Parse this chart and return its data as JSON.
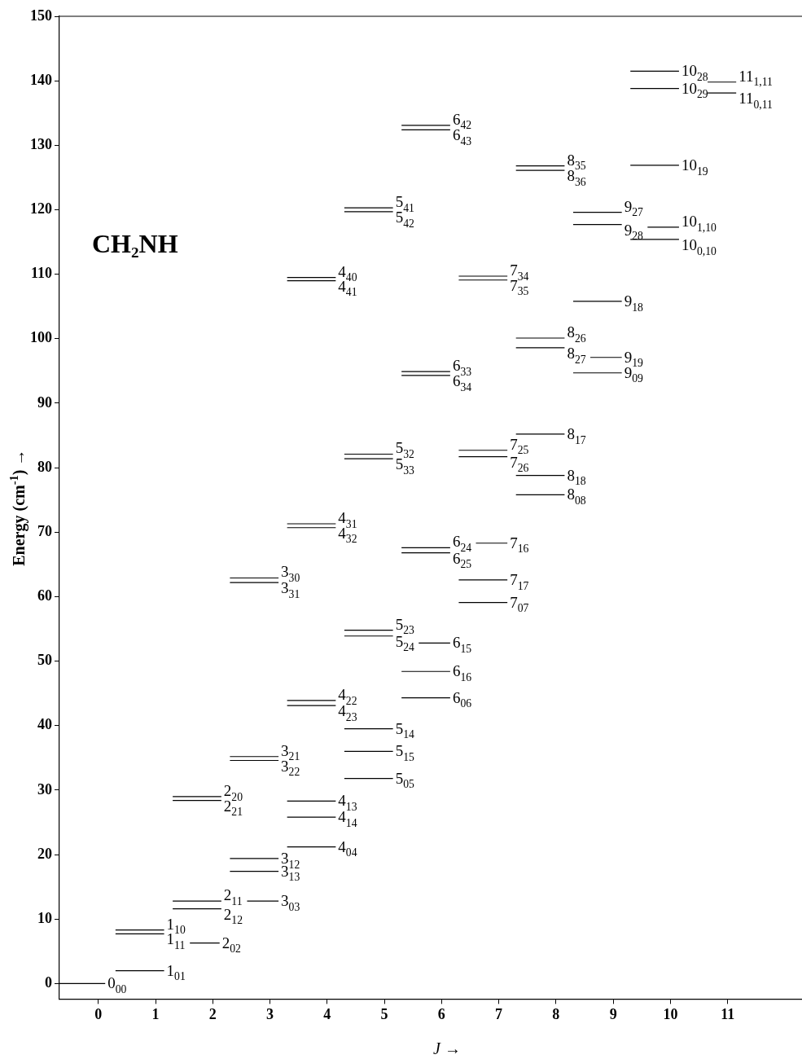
{
  "chart_data": {
    "type": "line",
    "xlabel": "J →",
    "ylabel": "Energy (cm$^{-1}$) →",
    "annotations": [
      "CH₂NH"
    ],
    "xlim": [
      -0.68,
      12.3
    ],
    "xticks": [
      0,
      1,
      2,
      3,
      4,
      5,
      6,
      7,
      8,
      9,
      10,
      11
    ],
    "ylim": [
      -2.4,
      150
    ],
    "yticks": [
      0,
      10,
      20,
      30,
      40,
      50,
      60,
      70,
      80,
      90,
      100,
      110,
      120,
      130,
      140,
      150
    ],
    "legend": false,
    "marker": "none",
    "series": [
      {
        "name": "0$_{00}$",
        "color": "#000000",
        "x": [
          -0.68,
          0.12
        ],
        "values": [
          0,
          0
        ]
      },
      {
        "name": "1$_{01}$",
        "color": "#000000",
        "x": [
          0.3,
          1.15
        ],
        "values": [
          2.0,
          2.0
        ]
      },
      {
        "name": "1$_{10}$",
        "color": "#000000",
        "x": [
          0.3,
          1.15
        ],
        "values": [
          8.3,
          8.3
        ]
      },
      {
        "name": "1$_{11}$",
        "color": "#000000",
        "x": [
          0.3,
          1.15
        ],
        "values": [
          7.7,
          7.7
        ]
      },
      {
        "name": "2$_{02}$",
        "color": "#000000",
        "x": [
          1.6,
          2.12
        ],
        "values": [
          6.3,
          6.3
        ]
      },
      {
        "name": "2$_{11}$",
        "color": "#000000",
        "x": [
          1.3,
          2.15
        ],
        "values": [
          12.8,
          12.8
        ]
      },
      {
        "name": "2$_{12}$",
        "color": "#000000",
        "x": [
          1.3,
          2.15
        ],
        "values": [
          11.6,
          11.6
        ]
      },
      {
        "name": "2$_{20}$",
        "color": "#000000",
        "x": [
          1.3,
          2.15
        ],
        "values": [
          29.0,
          29.0
        ]
      },
      {
        "name": "2$_{21}$",
        "color": "#000000",
        "x": [
          1.3,
          2.15
        ],
        "values": [
          28.4,
          28.4
        ]
      },
      {
        "name": "3$_{03}$",
        "color": "#000000",
        "x": [
          2.6,
          3.15
        ],
        "values": [
          12.8,
          12.8
        ]
      },
      {
        "name": "3$_{13}$",
        "color": "#000000",
        "x": [
          2.3,
          3.15
        ],
        "values": [
          17.4,
          17.4
        ]
      },
      {
        "name": "3$_{12}$",
        "color": "#000000",
        "x": [
          2.3,
          3.15
        ],
        "values": [
          19.4,
          19.4
        ]
      },
      {
        "name": "3$_{21}$",
        "color": "#000000",
        "x": [
          2.3,
          3.15
        ],
        "values": [
          35.2,
          35.2
        ]
      },
      {
        "name": "3$_{22}$",
        "color": "#000000",
        "x": [
          2.3,
          3.15
        ],
        "values": [
          34.6,
          34.6
        ]
      },
      {
        "name": "3$_{30}$",
        "color": "#000000",
        "x": [
          2.3,
          3.15
        ],
        "values": [
          62.9,
          62.9
        ]
      },
      {
        "name": "3$_{31}$",
        "color": "#000000",
        "x": [
          2.3,
          3.15
        ],
        "values": [
          62.2,
          62.2
        ]
      },
      {
        "name": "4$_{04}$",
        "color": "#000000",
        "x": [
          3.3,
          4.15
        ],
        "values": [
          21.2,
          21.2
        ]
      },
      {
        "name": "4$_{14}$",
        "color": "#000000",
        "x": [
          3.3,
          4.15
        ],
        "values": [
          25.8,
          25.8
        ]
      },
      {
        "name": "4$_{13}$",
        "color": "#000000",
        "x": [
          3.3,
          4.15
        ],
        "values": [
          28.3,
          28.3
        ]
      },
      {
        "name": "4$_{22}$",
        "color": "#000000",
        "x": [
          3.3,
          4.15
        ],
        "values": [
          43.9,
          43.9
        ]
      },
      {
        "name": "4$_{23}$",
        "color": "#000000",
        "x": [
          3.3,
          4.15
        ],
        "values": [
          43.1,
          43.1
        ]
      },
      {
        "name": "4$_{31}$",
        "color": "#000000",
        "x": [
          3.3,
          4.15
        ],
        "values": [
          71.3,
          71.3
        ]
      },
      {
        "name": "4$_{32}$",
        "color": "#000000",
        "x": [
          3.3,
          4.15
        ],
        "values": [
          70.7,
          70.7
        ]
      },
      {
        "name": "4$_{40}$",
        "color": "#000000",
        "x": [
          3.3,
          4.15
        ],
        "values": [
          109.5,
          109.5
        ]
      },
      {
        "name": "4$_{41}$",
        "color": "#000000",
        "x": [
          3.3,
          4.15
        ],
        "values": [
          109.0,
          109.0
        ]
      },
      {
        "name": "5$_{05}$",
        "color": "#000000",
        "x": [
          4.3,
          5.15
        ],
        "values": [
          31.8,
          31.8
        ]
      },
      {
        "name": "5$_{15}$",
        "color": "#000000",
        "x": [
          4.3,
          5.15
        ],
        "values": [
          36.0,
          36.0
        ]
      },
      {
        "name": "5$_{14}$",
        "color": "#000000",
        "x": [
          4.3,
          5.15
        ],
        "values": [
          39.5,
          39.5
        ]
      },
      {
        "name": "5$_{23}$",
        "color": "#000000",
        "x": [
          4.3,
          5.15
        ],
        "values": [
          54.8,
          54.8
        ]
      },
      {
        "name": "5$_{24}$",
        "color": "#000000",
        "x": [
          4.3,
          5.15
        ],
        "values": [
          53.9,
          53.9
        ]
      },
      {
        "name": "5$_{32}$",
        "color": "#000000",
        "x": [
          4.3,
          5.15
        ],
        "values": [
          82.1,
          82.1
        ]
      },
      {
        "name": "5$_{33}$",
        "color": "#000000",
        "x": [
          4.3,
          5.15
        ],
        "values": [
          81.4,
          81.4
        ]
      },
      {
        "name": "5$_{41}$",
        "color": "#000000",
        "x": [
          4.3,
          5.15
        ],
        "values": [
          120.3,
          120.3
        ]
      },
      {
        "name": "5$_{42}$",
        "color": "#000000",
        "x": [
          4.3,
          5.15
        ],
        "values": [
          119.7,
          119.7
        ]
      },
      {
        "name": "6$_{06}$",
        "color": "#000000",
        "x": [
          5.3,
          6.15
        ],
        "values": [
          44.3,
          44.3
        ]
      },
      {
        "name": "6$_{16}$",
        "color": "#000000",
        "x": [
          5.3,
          6.15
        ],
        "values": [
          48.4,
          48.4
        ]
      },
      {
        "name": "6$_{15}$",
        "color": "#000000",
        "x": [
          5.6,
          6.15
        ],
        "values": [
          52.8,
          52.8
        ]
      },
      {
        "name": "6$_{24}$",
        "color": "#000000",
        "x": [
          5.3,
          6.15
        ],
        "values": [
          67.6,
          67.6
        ]
      },
      {
        "name": "6$_{25}$",
        "color": "#000000",
        "x": [
          5.3,
          6.15
        ],
        "values": [
          66.8,
          66.8
        ]
      },
      {
        "name": "6$_{33}$",
        "color": "#000000",
        "x": [
          5.3,
          6.15
        ],
        "values": [
          94.9,
          94.9
        ]
      },
      {
        "name": "6$_{34}$",
        "color": "#000000",
        "x": [
          5.3,
          6.15
        ],
        "values": [
          94.3,
          94.3
        ]
      },
      {
        "name": "6$_{42}$",
        "color": "#000000",
        "x": [
          5.3,
          6.15
        ],
        "values": [
          133.1,
          133.1
        ]
      },
      {
        "name": "6$_{43}$",
        "color": "#000000",
        "x": [
          5.3,
          6.15
        ],
        "values": [
          132.4,
          132.4
        ]
      },
      {
        "name": "7$_{07}$",
        "color": "#000000",
        "x": [
          6.3,
          7.15
        ],
        "values": [
          59.1,
          59.1
        ]
      },
      {
        "name": "7$_{17}$",
        "color": "#000000",
        "x": [
          6.3,
          7.15
        ],
        "values": [
          62.6,
          62.6
        ]
      },
      {
        "name": "7$_{16}$",
        "color": "#000000",
        "x": [
          6.6,
          7.15
        ],
        "values": [
          68.3,
          68.3
        ]
      },
      {
        "name": "7$_{25}$",
        "color": "#000000",
        "x": [
          6.3,
          7.15
        ],
        "values": [
          82.7,
          82.7
        ]
      },
      {
        "name": "7$_{26}$",
        "color": "#000000",
        "x": [
          6.3,
          7.15
        ],
        "values": [
          81.7,
          81.7
        ]
      },
      {
        "name": "7$_{34}$",
        "color": "#000000",
        "x": [
          6.3,
          7.15
        ],
        "values": [
          109.7,
          109.7
        ]
      },
      {
        "name": "7$_{35}$",
        "color": "#000000",
        "x": [
          6.3,
          7.15
        ],
        "values": [
          109.1,
          109.1
        ]
      },
      {
        "name": "8$_{08}$",
        "color": "#000000",
        "x": [
          7.3,
          8.15
        ],
        "values": [
          75.8,
          75.8
        ]
      },
      {
        "name": "8$_{18}$",
        "color": "#000000",
        "x": [
          7.3,
          8.15
        ],
        "values": [
          78.8,
          78.8
        ]
      },
      {
        "name": "8$_{17}$",
        "color": "#000000",
        "x": [
          7.3,
          8.15
        ],
        "values": [
          85.2,
          85.2
        ]
      },
      {
        "name": "8$_{26}$",
        "color": "#000000",
        "x": [
          7.3,
          8.15
        ],
        "values": [
          100.1,
          100.1
        ]
      },
      {
        "name": "8$_{27}$",
        "color": "#000000",
        "x": [
          7.3,
          8.15
        ],
        "values": [
          98.6,
          98.6
        ]
      },
      {
        "name": "8$_{35}$",
        "color": "#000000",
        "x": [
          7.3,
          8.15
        ],
        "values": [
          126.8,
          126.8
        ]
      },
      {
        "name": "8$_{36}$",
        "color": "#000000",
        "x": [
          7.3,
          8.15
        ],
        "values": [
          126.1,
          126.1
        ]
      },
      {
        "name": "9$_{09}$",
        "color": "#000000",
        "x": [
          8.3,
          9.15
        ],
        "values": [
          94.7,
          94.7
        ]
      },
      {
        "name": "9$_{19}$",
        "color": "#000000",
        "x": [
          8.6,
          9.15
        ],
        "values": [
          97.1,
          97.1
        ]
      },
      {
        "name": "9$_{18}$",
        "color": "#000000",
        "x": [
          8.3,
          9.15
        ],
        "values": [
          105.8,
          105.8
        ]
      },
      {
        "name": "9$_{28}$",
        "color": "#000000",
        "x": [
          8.3,
          9.15
        ],
        "values": [
          117.7,
          117.7
        ]
      },
      {
        "name": "9$_{27}$",
        "color": "#000000",
        "x": [
          8.3,
          9.15
        ],
        "values": [
          119.6,
          119.6
        ]
      },
      {
        "name": "10$_{0,10}$",
        "color": "#000000",
        "x": [
          9.3,
          10.15
        ],
        "values": [
          115.4,
          115.4
        ]
      },
      {
        "name": "10$_{1,10}$",
        "color": "#000000",
        "x": [
          9.6,
          10.15
        ],
        "values": [
          117.3,
          117.3
        ]
      },
      {
        "name": "10$_{19}$",
        "color": "#000000",
        "x": [
          9.3,
          10.15
        ],
        "values": [
          126.9,
          126.9
        ]
      },
      {
        "name": "10$_{29}$",
        "color": "#000000",
        "x": [
          9.3,
          10.15
        ],
        "values": [
          138.8,
          138.8
        ]
      },
      {
        "name": "10$_{28}$",
        "color": "#000000",
        "x": [
          9.3,
          10.15
        ],
        "values": [
          141.5,
          141.5
        ]
      },
      {
        "name": "11$_{0,11}$",
        "color": "#000000",
        "x": [
          10.65,
          11.15
        ],
        "values": [
          138.1,
          138.1
        ]
      },
      {
        "name": "11$_{1,11}$",
        "color": "#000000",
        "x": [
          10.65,
          11.15
        ],
        "values": [
          139.8,
          139.8
        ]
      }
    ]
  }
}
